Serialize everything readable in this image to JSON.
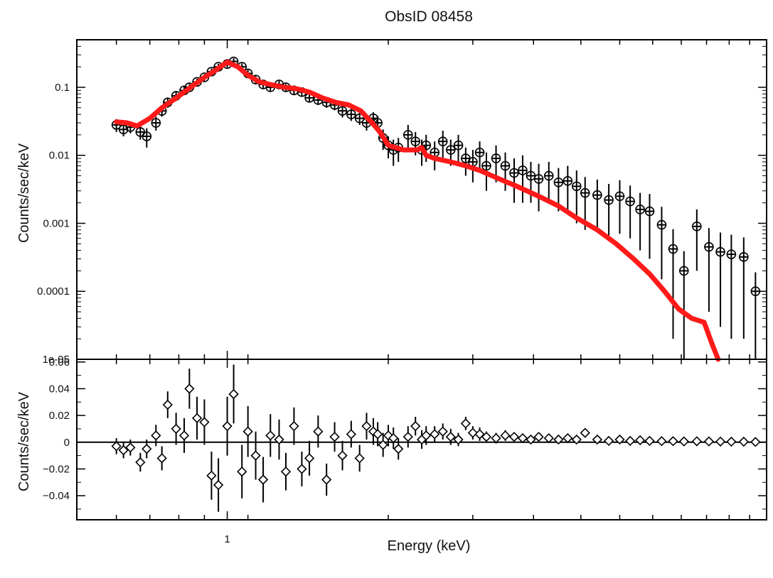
{
  "chart_data": [
    {
      "panel": "spectrum",
      "type": "scatter",
      "title": "ObsID 08458",
      "xlabel": "",
      "ylabel": "Counts/sec/keV",
      "xscale": "log",
      "yscale": "log",
      "xlim": [
        0.5,
        12
      ],
      "ylim": [
        1e-05,
        0.5
      ],
      "ytick_labels": [
        "1e-05",
        "0.0001",
        "0.001",
        "0.01",
        "0.1"
      ],
      "ytick_values": [
        1e-05,
        0.0001,
        0.001,
        0.01,
        0.1
      ],
      "colors": {
        "model": "#ff1a1a",
        "data": "#000000"
      },
      "series": [
        {
          "kind": "data",
          "marker": "circle",
          "x": [
            0.6,
            0.62,
            0.64,
            0.67,
            0.69,
            0.72,
            0.74,
            0.76,
            0.79,
            0.82,
            0.84,
            0.87,
            0.9,
            0.93,
            0.96,
            1.0,
            1.03,
            1.07,
            1.1,
            1.14,
            1.18,
            1.22,
            1.27,
            1.31,
            1.36,
            1.41,
            1.46,
            1.52,
            1.58,
            1.64,
            1.7,
            1.77,
            1.84,
            1.9,
            1.96,
            2.0,
            2.05,
            2.1,
            2.15,
            2.2,
            2.3,
            2.38,
            2.45,
            2.5,
            2.6,
            2.7,
            2.8,
            2.9,
            3.0,
            3.1,
            3.2,
            3.3,
            3.45,
            3.6,
            3.75,
            3.9,
            4.05,
            4.2,
            4.4,
            4.6,
            4.8,
            5.0,
            5.2,
            5.5,
            5.8,
            6.1,
            6.4,
            6.7,
            7.0,
            7.4,
            7.8,
            8.2,
            8.7,
            9.2,
            9.7,
            10.2,
            10.8,
            11.4
          ],
          "y": [
            0.028,
            0.024,
            0.026,
            0.022,
            0.019,
            0.03,
            0.045,
            0.06,
            0.075,
            0.09,
            0.1,
            0.12,
            0.14,
            0.17,
            0.2,
            0.22,
            0.24,
            0.2,
            0.16,
            0.13,
            0.11,
            0.1,
            0.11,
            0.1,
            0.09,
            0.085,
            0.07,
            0.065,
            0.06,
            0.055,
            0.045,
            0.04,
            0.035,
            0.03,
            0.035,
            0.03,
            0.018,
            0.014,
            0.012,
            0.013,
            0.02,
            0.016,
            0.012,
            0.014,
            0.011,
            0.016,
            0.012,
            0.014,
            0.009,
            0.008,
            0.011,
            0.007,
            0.009,
            0.007,
            0.0055,
            0.006,
            0.005,
            0.0045,
            0.005,
            0.004,
            0.0042,
            0.0035,
            0.0028,
            0.0026,
            0.0022,
            0.0025,
            0.0021,
            0.0016,
            0.0015,
            0.00095,
            0.00042,
            0.0002,
            0.0009,
            0.00045,
            0.00038,
            0.00035,
            0.00032,
            0.0001
          ],
          "y_err": [
            0.006,
            0.005,
            0.005,
            0.005,
            0.006,
            0.007,
            0.008,
            0.01,
            0.012,
            0.012,
            0.012,
            0.014,
            0.016,
            0.02,
            0.022,
            0.025,
            0.028,
            0.024,
            0.02,
            0.016,
            0.014,
            0.012,
            0.014,
            0.012,
            0.012,
            0.012,
            0.01,
            0.01,
            0.01,
            0.009,
            0.009,
            0.008,
            0.007,
            0.007,
            0.008,
            0.008,
            0.006,
            0.005,
            0.005,
            0.005,
            0.008,
            0.006,
            0.005,
            0.006,
            0.005,
            0.007,
            0.005,
            0.006,
            0.004,
            0.004,
            0.005,
            0.004,
            0.005,
            0.004,
            0.0035,
            0.004,
            0.003,
            0.003,
            0.003,
            0.0025,
            0.0028,
            0.0025,
            0.002,
            0.0018,
            0.0016,
            0.0018,
            0.0015,
            0.0012,
            0.0012,
            0.0008,
            0.0004,
            0.00019,
            0.0007,
            0.0004,
            0.00035,
            0.00033,
            0.0003,
            9e-05
          ]
        },
        {
          "kind": "model",
          "marker": "line",
          "x": [
            0.6,
            0.63,
            0.66,
            0.7,
            0.74,
            0.78,
            0.82,
            0.86,
            0.9,
            0.95,
            1.0,
            1.05,
            1.1,
            1.16,
            1.22,
            1.3,
            1.38,
            1.46,
            1.55,
            1.65,
            1.75,
            1.85,
            1.95,
            2.02,
            2.1,
            2.25,
            2.4,
            2.45,
            2.5,
            2.6,
            2.8,
            3.0,
            3.2,
            3.5,
            3.8,
            4.2,
            4.6,
            5.0,
            5.5,
            6.0,
            6.5,
            7.0,
            7.5,
            8.0,
            8.5,
            9.0,
            9.3,
            9.6
          ],
          "y": [
            0.031,
            0.03,
            0.027,
            0.035,
            0.05,
            0.065,
            0.085,
            0.11,
            0.14,
            0.18,
            0.235,
            0.2,
            0.15,
            0.12,
            0.11,
            0.1,
            0.095,
            0.085,
            0.07,
            0.06,
            0.055,
            0.045,
            0.03,
            0.022,
            0.014,
            0.012,
            0.012,
            0.013,
            0.01,
            0.009,
            0.008,
            0.007,
            0.006,
            0.0045,
            0.0035,
            0.0025,
            0.0018,
            0.0012,
            0.0008,
            0.0005,
            0.0003,
            0.00018,
            0.0001,
            5.5e-05,
            4e-05,
            3.5e-05,
            1.8e-05,
            1e-05
          ]
        }
      ]
    },
    {
      "panel": "residuals",
      "type": "scatter",
      "xlabel": "Energy (keV)",
      "ylabel": "Counts/sec/keV",
      "xscale": "log",
      "yscale": "linear",
      "xlim": [
        0.5,
        12
      ],
      "ylim": [
        -0.058,
        0.062
      ],
      "ytick_labels": [
        "−0.04",
        "−0.02",
        "0",
        "0.02",
        "0.04",
        "0.06"
      ],
      "ytick_values": [
        -0.04,
        -0.02,
        0,
        0.02,
        0.04,
        0.06
      ],
      "xtick_labels": [
        "1"
      ],
      "xtick_values": [
        1
      ],
      "series": [
        {
          "kind": "residual",
          "marker": "diamond",
          "x": [
            0.6,
            0.62,
            0.64,
            0.67,
            0.69,
            0.72,
            0.74,
            0.76,
            0.79,
            0.82,
            0.84,
            0.87,
            0.9,
            0.93,
            0.96,
            1.0,
            1.03,
            1.07,
            1.1,
            1.14,
            1.18,
            1.22,
            1.27,
            1.31,
            1.36,
            1.41,
            1.46,
            1.52,
            1.58,
            1.64,
            1.7,
            1.77,
            1.84,
            1.9,
            1.96,
            2.0,
            2.05,
            2.1,
            2.15,
            2.2,
            2.3,
            2.38,
            2.45,
            2.5,
            2.6,
            2.7,
            2.8,
            2.9,
            3.0,
            3.1,
            3.2,
            3.3,
            3.45,
            3.6,
            3.75,
            3.9,
            4.05,
            4.2,
            4.4,
            4.6,
            4.8,
            5.0,
            5.2,
            5.5,
            5.8,
            6.1,
            6.4,
            6.7,
            7.0,
            7.4,
            7.8,
            8.2,
            8.7,
            9.2,
            9.7,
            10.2,
            10.8,
            11.4
          ],
          "y": [
            -0.003,
            -0.006,
            -0.004,
            -0.015,
            -0.005,
            0.005,
            -0.012,
            0.028,
            0.01,
            0.005,
            0.04,
            0.018,
            0.015,
            -0.025,
            -0.032,
            0.012,
            0.036,
            -0.022,
            0.008,
            -0.01,
            -0.028,
            0.005,
            0.002,
            -0.022,
            0.012,
            -0.02,
            -0.012,
            0.008,
            -0.028,
            0.004,
            -0.01,
            0.006,
            -0.012,
            0.012,
            0.008,
            0.006,
            -0.002,
            0.005,
            0.003,
            -0.005,
            0.004,
            0.012,
            0.002,
            0.005,
            0.006,
            0.008,
            0.004,
            0.002,
            0.014,
            0.007,
            0.006,
            0.004,
            0.003,
            0.005,
            0.004,
            0.003,
            0.002,
            0.004,
            0.003,
            0.002,
            0.003,
            0.002,
            0.007,
            0.002,
            0.001,
            0.002,
            0.001,
            0.0015,
            0.001,
            0.0008,
            0.0008,
            0.0006,
            0.0007,
            0.0006,
            0.0005,
            0.0004,
            0.0004,
            0.0002
          ],
          "y_err": [
            0.006,
            0.006,
            0.006,
            0.007,
            0.007,
            0.008,
            0.009,
            0.01,
            0.012,
            0.013,
            0.015,
            0.016,
            0.017,
            0.018,
            0.02,
            0.022,
            0.022,
            0.02,
            0.019,
            0.018,
            0.017,
            0.016,
            0.015,
            0.014,
            0.014,
            0.013,
            0.013,
            0.012,
            0.012,
            0.011,
            0.011,
            0.01,
            0.01,
            0.01,
            0.01,
            0.009,
            0.009,
            0.008,
            0.008,
            0.008,
            0.008,
            0.007,
            0.007,
            0.007,
            0.006,
            0.006,
            0.006,
            0.005,
            0.005,
            0.005,
            0.005,
            0.004,
            0.004,
            0.004,
            0.003,
            0.003,
            0.003,
            0.003,
            0.002,
            0.002,
            0.002,
            0.002,
            0.002,
            0.0015,
            0.0015,
            0.0012,
            0.001,
            0.001,
            0.001,
            0.0008,
            0.0006,
            0.0005,
            0.0005,
            0.0004,
            0.0004,
            0.0003,
            0.0003,
            0.0002
          ]
        }
      ]
    }
  ]
}
